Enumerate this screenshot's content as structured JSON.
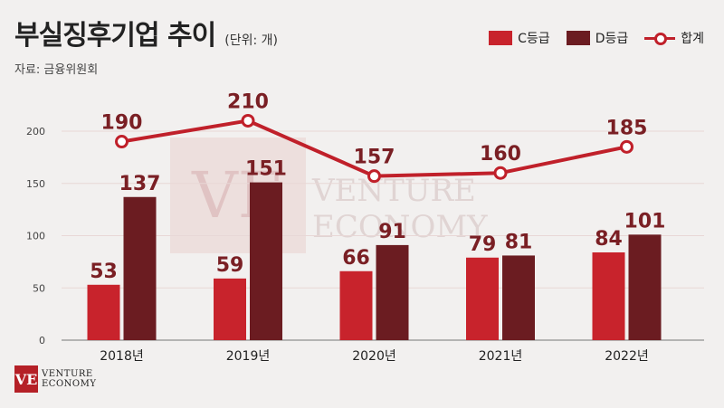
{
  "header": {
    "title": "부실징후기업 추이",
    "unit": "(단위: 개)",
    "source": "자료: 금융위원회"
  },
  "legend": {
    "c_label": "C등급",
    "d_label": "D등급",
    "total_label": "합계"
  },
  "colors": {
    "c_grade": "#c8232c",
    "d_grade": "#6b1c21",
    "total": "#c0202a",
    "label_text": "#7a1f24"
  },
  "chart_data": {
    "type": "bar",
    "categories": [
      "2018년",
      "2019년",
      "2020년",
      "2021년",
      "2022년"
    ],
    "series": [
      {
        "name": "C등급",
        "type": "bar",
        "values": [
          53,
          59,
          66,
          79,
          84
        ]
      },
      {
        "name": "D등급",
        "type": "bar",
        "values": [
          137,
          151,
          91,
          81,
          101
        ]
      },
      {
        "name": "합계",
        "type": "line",
        "values": [
          190,
          210,
          157,
          160,
          185
        ]
      }
    ],
    "yticks": [
      0,
      50,
      100,
      150,
      200
    ],
    "ylim": [
      0,
      230
    ],
    "grid": true,
    "legend_position": "top-right"
  },
  "watermark": {
    "line1": "VENTURE",
    "line2": "ECONOMY",
    "mark": "VE"
  },
  "logo": {
    "mark": "VE",
    "line1": "VENTURE",
    "line2": "ECONOMY"
  }
}
